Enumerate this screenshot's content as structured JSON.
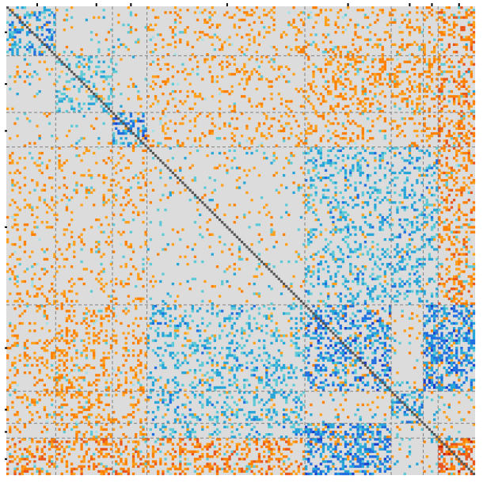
{
  "chart_data": {
    "type": "heatmap",
    "title": "",
    "xlabel": "",
    "ylabel": "",
    "size": 190,
    "colors": {
      "background": "#dcdcdc",
      "diagonal": "#555555",
      "group_line": "#808080",
      "tick": "#000000",
      "positive_scale": [
        "#ffc04d",
        "#ff9f1a",
        "#ff7f00",
        "#e8541a",
        "#cc2200"
      ],
      "negative_scale": [
        "#a6e0e6",
        "#5ccad6",
        "#26a5d9",
        "#1f6fe0",
        "#1a3fcc"
      ]
    },
    "group_boundaries": [
      20,
      43,
      57,
      121,
      156,
      169,
      175
    ],
    "tick_positions": [
      10,
      31,
      50,
      89,
      138,
      163,
      172,
      183
    ],
    "top_tick_positions": [
      12,
      36,
      50,
      89,
      138,
      163,
      172,
      183
    ],
    "blocks": [
      {
        "rows": [
          0,
          20
        ],
        "cols": [
          0,
          20
        ],
        "strength": -0.7,
        "density": 0.35
      },
      {
        "rows": [
          20,
          43
        ],
        "cols": [
          20,
          43
        ],
        "strength": -0.5,
        "density": 0.25
      },
      {
        "rows": [
          43,
          57
        ],
        "cols": [
          43,
          57
        ],
        "strength": -0.8,
        "density": 0.45
      },
      {
        "rows": [
          121,
          156
        ],
        "cols": [
          121,
          156
        ],
        "strength": -0.8,
        "density": 0.4
      },
      {
        "rows": [
          156,
          169
        ],
        "cols": [
          156,
          169
        ],
        "strength": -0.7,
        "density": 0.4
      },
      {
        "rows": [
          175,
          190
        ],
        "cols": [
          175,
          190
        ],
        "strength": 0.8,
        "density": 0.5
      },
      {
        "rows": [
          0,
          20
        ],
        "cols": [
          121,
          190
        ],
        "strength": 0.7,
        "density": 0.45
      },
      {
        "rows": [
          43,
          57
        ],
        "cols": [
          121,
          190
        ],
        "strength": 0.75,
        "density": 0.45
      },
      {
        "rows": [
          57,
          121
        ],
        "cols": [
          121,
          190
        ],
        "strength": -0.6,
        "density": 0.25
      },
      {
        "rows": [
          57,
          121
        ],
        "cols": [
          175,
          190
        ],
        "strength": 0.85,
        "density": 0.55
      },
      {
        "rows": [
          121,
          156
        ],
        "cols": [
          169,
          190
        ],
        "strength": -0.8,
        "density": 0.5
      },
      {
        "rows": [
          121,
          175
        ],
        "cols": [
          0,
          57
        ],
        "strength": 0.55,
        "density": 0.2
      },
      {
        "rows": [
          175,
          190
        ],
        "cols": [
          0,
          121
        ],
        "strength": 0.65,
        "density": 0.35
      },
      {
        "rows": [
          20,
          43
        ],
        "cols": [
          121,
          175
        ],
        "strength": 0.55,
        "density": 0.3
      },
      {
        "rows": [
          57,
          121
        ],
        "cols": [
          0,
          57
        ],
        "strength": 0.5,
        "density": 0.12
      },
      {
        "rows": [
          0,
          57
        ],
        "cols": [
          57,
          121
        ],
        "strength": 0.5,
        "density": 0.15
      }
    ],
    "background_density": 0.08,
    "seed": 2024
  }
}
